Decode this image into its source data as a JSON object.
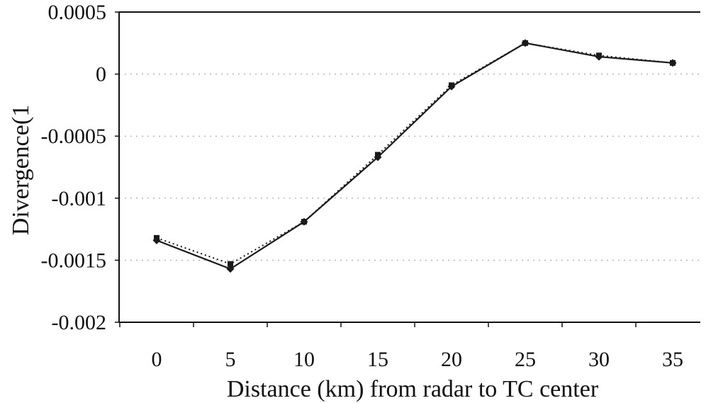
{
  "chart_data": {
    "type": "line",
    "title": "",
    "xlabel": "Distance (km) from radar to TC center",
    "ylabel": "Divergence(1",
    "x": [
      0,
      5,
      10,
      15,
      20,
      25,
      30,
      35
    ],
    "x_tick_labels": [
      "0",
      "5",
      "10",
      "15",
      "20",
      "25",
      "30",
      "35"
    ],
    "y_tick_labels": [
      "0.0005",
      "0",
      "-0.0005",
      "-0.001",
      "-0.0015",
      "-0.002"
    ],
    "y_ticks": [
      0.0005,
      0,
      -0.0005,
      -0.001,
      -0.0015,
      -0.002
    ],
    "ylim": [
      -0.002,
      0.0005
    ],
    "grid": "horizontal dotted",
    "legend": "none",
    "series": [
      {
        "style": "solid",
        "marker": "diamond",
        "values": [
          -0.00134,
          -0.00157,
          -0.00119,
          -0.00067,
          -0.0001,
          0.00025,
          0.00014,
          9e-05
        ]
      },
      {
        "style": "dotted",
        "marker": "square",
        "values": [
          -0.00132,
          -0.00153,
          -0.00119,
          -0.00065,
          -9e-05,
          0.00025,
          0.00015,
          9e-05
        ]
      }
    ]
  }
}
